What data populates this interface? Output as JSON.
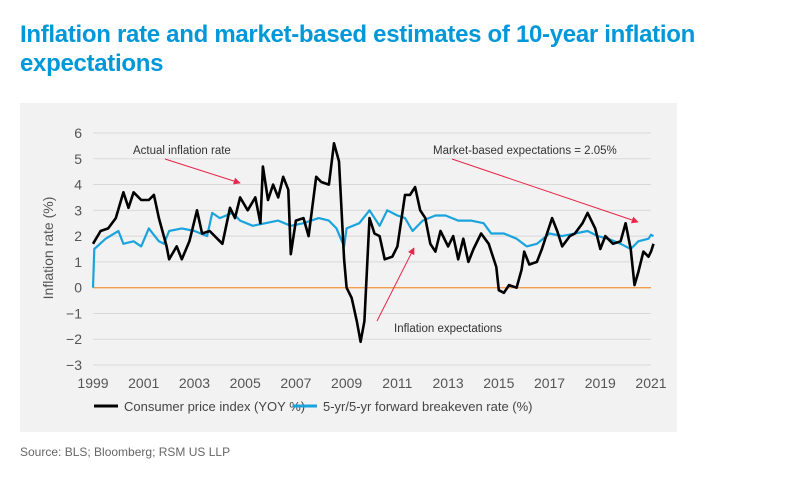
{
  "title": "Inflation rate and market-based estimates of 10-year inflation expectations",
  "source": "Source: BLS; Bloomberg; RSM US LLP",
  "chart_data": {
    "type": "line",
    "ylabel": "Inflation rate (%)",
    "xlabel": "",
    "xlim": [
      1999,
      2021.1
    ],
    "ylim": [
      -3,
      6
    ],
    "xticks": [
      "1999",
      "2001",
      "2003",
      "2005",
      "2007",
      "2009",
      "2011",
      "2013",
      "2015",
      "2017",
      "2019",
      "2021"
    ],
    "yticks": [
      "6",
      "5",
      "4",
      "3",
      "2",
      "1",
      "0",
      "−1",
      "−2",
      "−3"
    ],
    "grid": true,
    "legend_position": "bottom",
    "zero_line_color": "#f39c4a",
    "series": [
      {
        "name": "Consumer price index (YOY %)",
        "color": "#000000",
        "x": [
          1999.0,
          1999.3,
          1999.6,
          1999.9,
          2000.2,
          2000.4,
          2000.6,
          2000.9,
          2001.2,
          2001.4,
          2001.6,
          2001.9,
          2002.0,
          2002.3,
          2002.5,
          2002.8,
          2003.1,
          2003.3,
          2003.6,
          2003.9,
          2004.1,
          2004.4,
          2004.6,
          2004.8,
          2005.1,
          2005.4,
          2005.6,
          2005.7,
          2005.9,
          2006.1,
          2006.3,
          2006.5,
          2006.7,
          2006.8,
          2007.0,
          2007.3,
          2007.5,
          2007.8,
          2008.0,
          2008.3,
          2008.5,
          2008.7,
          2008.9,
          2009.0,
          2009.2,
          2009.4,
          2009.55,
          2009.7,
          2009.9,
          2010.1,
          2010.3,
          2010.5,
          2010.8,
          2011.0,
          2011.3,
          2011.5,
          2011.7,
          2011.9,
          2012.1,
          2012.3,
          2012.5,
          2012.7,
          2013.0,
          2013.2,
          2013.4,
          2013.6,
          2013.8,
          2014.0,
          2014.3,
          2014.6,
          2014.9,
          2015.0,
          2015.2,
          2015.4,
          2015.7,
          2015.9,
          2016.0,
          2016.2,
          2016.5,
          2016.7,
          2016.9,
          2017.1,
          2017.3,
          2017.5,
          2017.8,
          2018.0,
          2018.3,
          2018.5,
          2018.8,
          2019.0,
          2019.2,
          2019.5,
          2019.8,
          2020.0,
          2020.2,
          2020.35,
          2020.5,
          2020.7,
          2020.9,
          2021.0,
          2021.1
        ],
        "y": [
          1.7,
          2.2,
          2.3,
          2.7,
          3.7,
          3.1,
          3.7,
          3.4,
          3.4,
          3.6,
          2.7,
          1.6,
          1.1,
          1.6,
          1.1,
          1.8,
          3.0,
          2.1,
          2.2,
          1.9,
          1.7,
          3.1,
          2.7,
          3.5,
          3.0,
          3.5,
          2.5,
          4.7,
          3.4,
          4.0,
          3.5,
          4.3,
          3.8,
          1.3,
          2.6,
          2.7,
          2.0,
          4.3,
          4.1,
          4.0,
          5.6,
          4.9,
          1.1,
          0.0,
          -0.4,
          -1.3,
          -2.1,
          -1.3,
          2.7,
          2.1,
          2.0,
          1.1,
          1.2,
          1.6,
          3.6,
          3.6,
          3.9,
          3.0,
          2.7,
          1.7,
          1.4,
          2.2,
          1.6,
          2.0,
          1.1,
          1.9,
          1.0,
          1.5,
          2.1,
          1.7,
          0.8,
          -0.1,
          -0.2,
          0.1,
          0.0,
          0.7,
          1.4,
          0.9,
          1.0,
          1.5,
          2.1,
          2.7,
          2.2,
          1.6,
          2.0,
          2.1,
          2.5,
          2.9,
          2.3,
          1.5,
          2.0,
          1.7,
          1.8,
          2.5,
          1.5,
          0.1,
          0.6,
          1.4,
          1.2,
          1.4,
          1.7
        ]
      },
      {
        "name": "5-yr/5-yr forward breakeven rate (%)",
        "color": "#1aa3dc",
        "x": [
          1999.0,
          1999.05,
          1999.5,
          2000.0,
          2000.2,
          2000.6,
          2000.9,
          2001.2,
          2001.6,
          2001.8,
          2002.0,
          2002.5,
          2003.0,
          2003.5,
          2003.7,
          2004.0,
          2004.5,
          2004.8,
          2005.3,
          2005.8,
          2006.3,
          2006.8,
          2007.3,
          2007.9,
          2008.3,
          2008.6,
          2008.9,
          2009.0,
          2009.5,
          2009.9,
          2010.3,
          2010.6,
          2011.0,
          2011.3,
          2011.6,
          2012.0,
          2012.5,
          2012.9,
          2013.4,
          2013.9,
          2014.4,
          2014.7,
          2015.2,
          2015.7,
          2016.1,
          2016.5,
          2017.0,
          2017.5,
          2018.0,
          2018.5,
          2018.9,
          2019.3,
          2019.8,
          2020.2,
          2020.5,
          2020.9,
          2021.0,
          2021.1
        ],
        "y": [
          0.0,
          1.5,
          1.9,
          2.2,
          1.7,
          1.8,
          1.6,
          2.3,
          1.8,
          1.7,
          2.2,
          2.3,
          2.2,
          2.0,
          2.9,
          2.7,
          2.9,
          2.6,
          2.4,
          2.5,
          2.6,
          2.4,
          2.5,
          2.7,
          2.6,
          2.3,
          1.6,
          2.3,
          2.5,
          3.0,
          2.4,
          3.0,
          2.8,
          2.7,
          2.2,
          2.6,
          2.8,
          2.8,
          2.6,
          2.6,
          2.5,
          2.1,
          2.1,
          1.9,
          1.6,
          1.7,
          2.1,
          2.0,
          2.1,
          2.2,
          2.0,
          1.9,
          1.7,
          1.5,
          1.8,
          1.9,
          2.05,
          2.0
        ]
      }
    ],
    "annotations": [
      {
        "text": "Actual inflation rate"
      },
      {
        "text": "Market-based expectations = 2.05%"
      },
      {
        "text": "Inflation expectations"
      }
    ],
    "annotation_arrow_color": "#e8254a"
  }
}
